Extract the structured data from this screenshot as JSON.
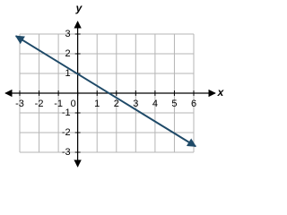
{
  "chart_data": {
    "type": "line",
    "x_label": "x",
    "y_label": "y",
    "x": [
      -3.2,
      6.1
    ],
    "series": [
      {
        "color": "#1f4a68",
        "values": [
          2.9,
          -2.7
        ]
      }
    ],
    "xlim": [
      -3,
      6
    ],
    "ylim": [
      -3,
      3
    ],
    "xticks": [
      -3,
      -2,
      -1,
      0,
      1,
      2,
      3,
      4,
      5,
      6
    ],
    "yticks": [
      -3,
      -2,
      -1,
      1,
      2,
      3
    ],
    "grid": true
  }
}
